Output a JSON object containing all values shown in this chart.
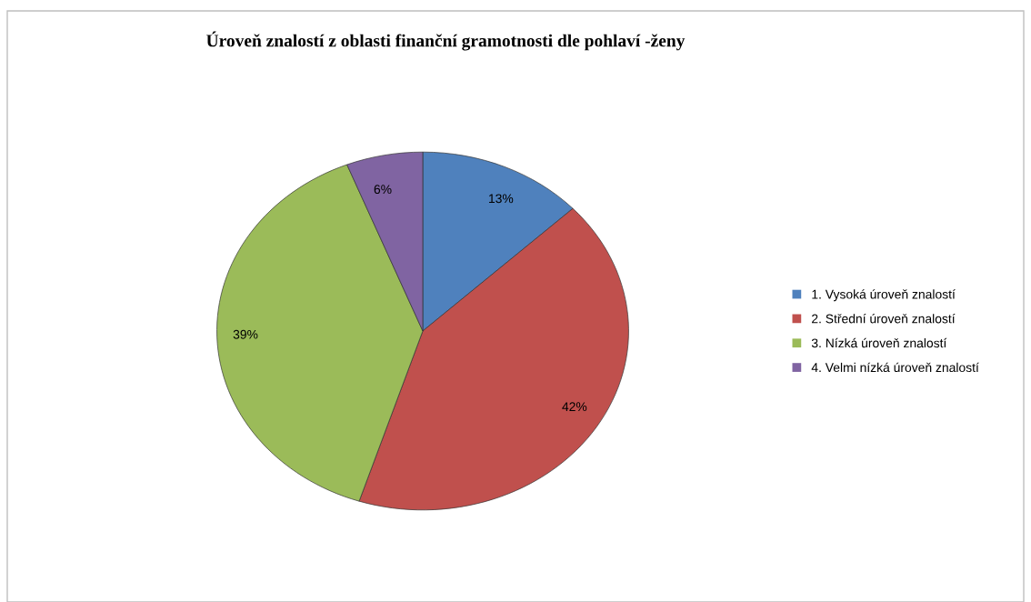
{
  "chart_data": {
    "type": "pie",
    "title": "Úroveň znalostí z oblasti finanční gramotnosti dle pohlaví -ženy",
    "categories": [
      "1. Vysoká úroveň znalostí",
      "2. Střední úroveň znalostí",
      "3. Nízká úroveň znalostí",
      "4. Velmi nízká úroveň znalostí"
    ],
    "values": [
      13,
      42,
      39,
      6
    ],
    "colors": [
      "#4f81bd",
      "#c0504d",
      "#9bbb59",
      "#8064a2"
    ],
    "value_labels": [
      "13%",
      "42%",
      "39%",
      "6%"
    ],
    "legend": "right"
  }
}
